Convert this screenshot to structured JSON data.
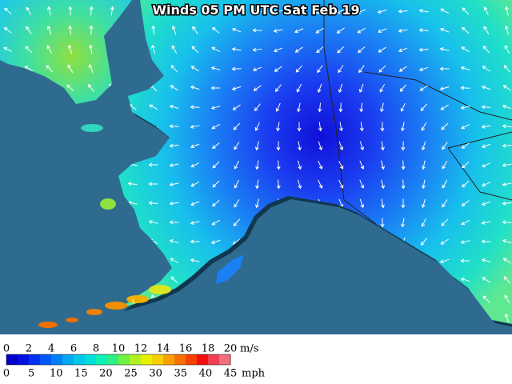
{
  "header": {
    "title": "Winds 05 PM UTC Sat Feb 19"
  },
  "legend": {
    "ms_ticks": [
      0,
      2,
      4,
      6,
      8,
      10,
      12,
      14,
      16,
      18,
      20
    ],
    "ms_unit": "m/s",
    "mph_ticks": [
      0,
      5,
      10,
      15,
      20,
      25,
      30,
      35,
      40,
      45
    ],
    "mph_unit": "mph",
    "colors": [
      "#0000c8",
      "#0010e0",
      "#0030f0",
      "#0058f8",
      "#0080f8",
      "#00a8f0",
      "#00c8e8",
      "#00e0d8",
      "#10f0b0",
      "#30f080",
      "#70f040",
      "#b0f020",
      "#e8f000",
      "#f8d000",
      "#f8a000",
      "#f87000",
      "#f84000",
      "#f01010",
      "#f04050",
      "#f07080"
    ]
  }
}
